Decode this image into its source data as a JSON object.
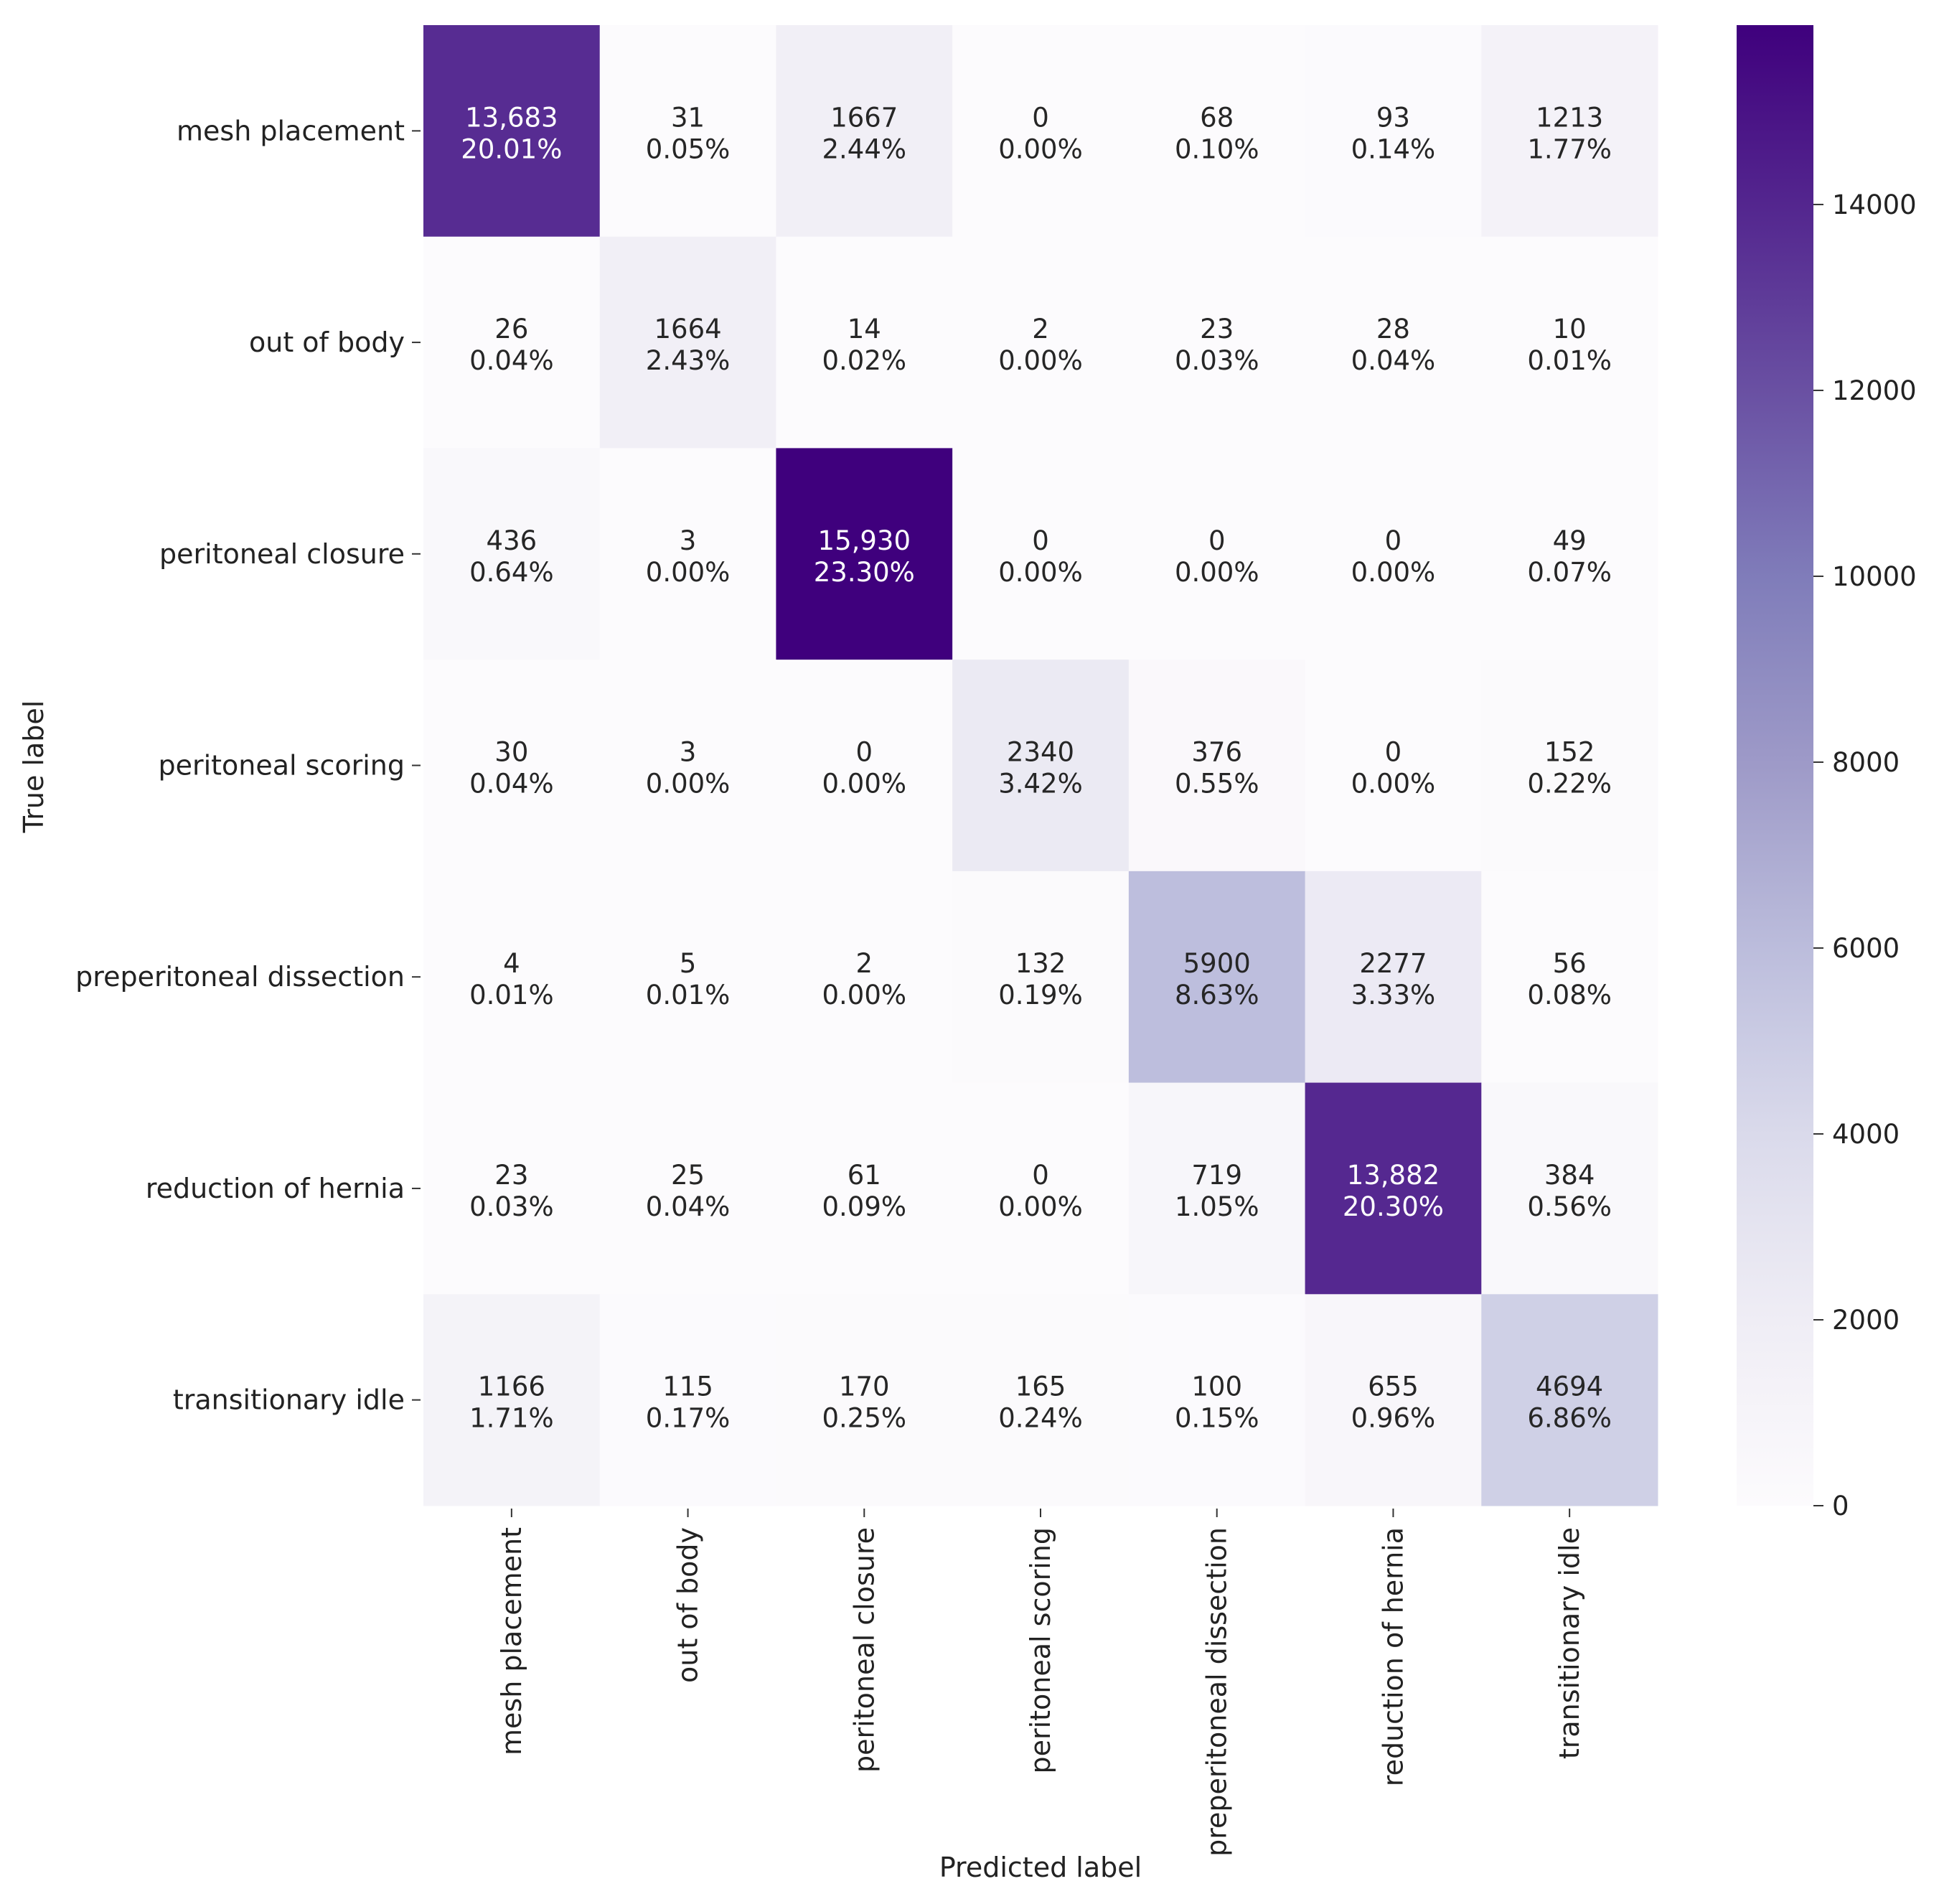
{
  "chart_data": {
    "type": "heatmap",
    "title": "",
    "xlabel": "Predicted label",
    "ylabel": "True label",
    "categories": [
      "mesh placement",
      "out of body",
      "peritoneal closure",
      "peritoneal scoring",
      "preperitoneal dissection",
      "reduction of hernia",
      "transitionary idle"
    ],
    "x": [
      "mesh placement",
      "out of body",
      "peritoneal closure",
      "peritoneal scoring",
      "preperitoneal dissection",
      "reduction of hernia",
      "transitionary idle"
    ],
    "y": [
      "mesh placement",
      "out of body",
      "peritoneal closure",
      "peritoneal scoring",
      "preperitoneal dissection",
      "reduction of hernia",
      "transitionary idle"
    ],
    "values": [
      [
        13683,
        31,
        1667,
        0,
        68,
        93,
        1213
      ],
      [
        26,
        1664,
        14,
        2,
        23,
        28,
        10
      ],
      [
        436,
        3,
        15930,
        0,
        0,
        0,
        49
      ],
      [
        30,
        3,
        0,
        2340,
        376,
        0,
        152
      ],
      [
        4,
        5,
        2,
        132,
        5900,
        2277,
        56
      ],
      [
        23,
        25,
        61,
        0,
        719,
        13882,
        384
      ],
      [
        1166,
        115,
        170,
        165,
        100,
        655,
        4694
      ]
    ],
    "count_labels": [
      [
        "13,683",
        "31",
        "1667",
        "0",
        "68",
        "93",
        "1213"
      ],
      [
        "26",
        "1664",
        "14",
        "2",
        "23",
        "28",
        "10"
      ],
      [
        "436",
        "3",
        "15,930",
        "0",
        "0",
        "0",
        "49"
      ],
      [
        "30",
        "3",
        "0",
        "2340",
        "376",
        "0",
        "152"
      ],
      [
        "4",
        "5",
        "2",
        "132",
        "5900",
        "2277",
        "56"
      ],
      [
        "23",
        "25",
        "61",
        "0",
        "719",
        "13,882",
        "384"
      ],
      [
        "1166",
        "115",
        "170",
        "165",
        "100",
        "655",
        "4694"
      ]
    ],
    "percent_labels": [
      [
        "20.01%",
        "0.05%",
        "2.44%",
        "0.00%",
        "0.10%",
        "0.14%",
        "1.77%"
      ],
      [
        "0.04%",
        "2.43%",
        "0.02%",
        "0.00%",
        "0.03%",
        "0.04%",
        "0.01%"
      ],
      [
        "0.64%",
        "0.00%",
        "23.30%",
        "0.00%",
        "0.00%",
        "0.00%",
        "0.07%"
      ],
      [
        "0.04%",
        "0.00%",
        "0.00%",
        "3.42%",
        "0.55%",
        "0.00%",
        "0.22%"
      ],
      [
        "0.01%",
        "0.01%",
        "0.00%",
        "0.19%",
        "8.63%",
        "3.33%",
        "0.08%"
      ],
      [
        "0.03%",
        "0.04%",
        "0.09%",
        "0.00%",
        "1.05%",
        "20.30%",
        "0.56%"
      ],
      [
        "1.71%",
        "0.17%",
        "0.25%",
        "0.24%",
        "0.15%",
        "0.96%",
        "6.86%"
      ]
    ],
    "colorbar": {
      "colormap": "Purples",
      "range": [
        0,
        15930
      ],
      "ticks": [
        0,
        2000,
        4000,
        6000,
        8000,
        10000,
        12000,
        14000
      ],
      "tick_labels": [
        "0",
        "2000",
        "4000",
        "6000",
        "8000",
        "10000",
        "12000",
        "14000"
      ]
    },
    "grid": false,
    "legend": "colorbar-right"
  }
}
